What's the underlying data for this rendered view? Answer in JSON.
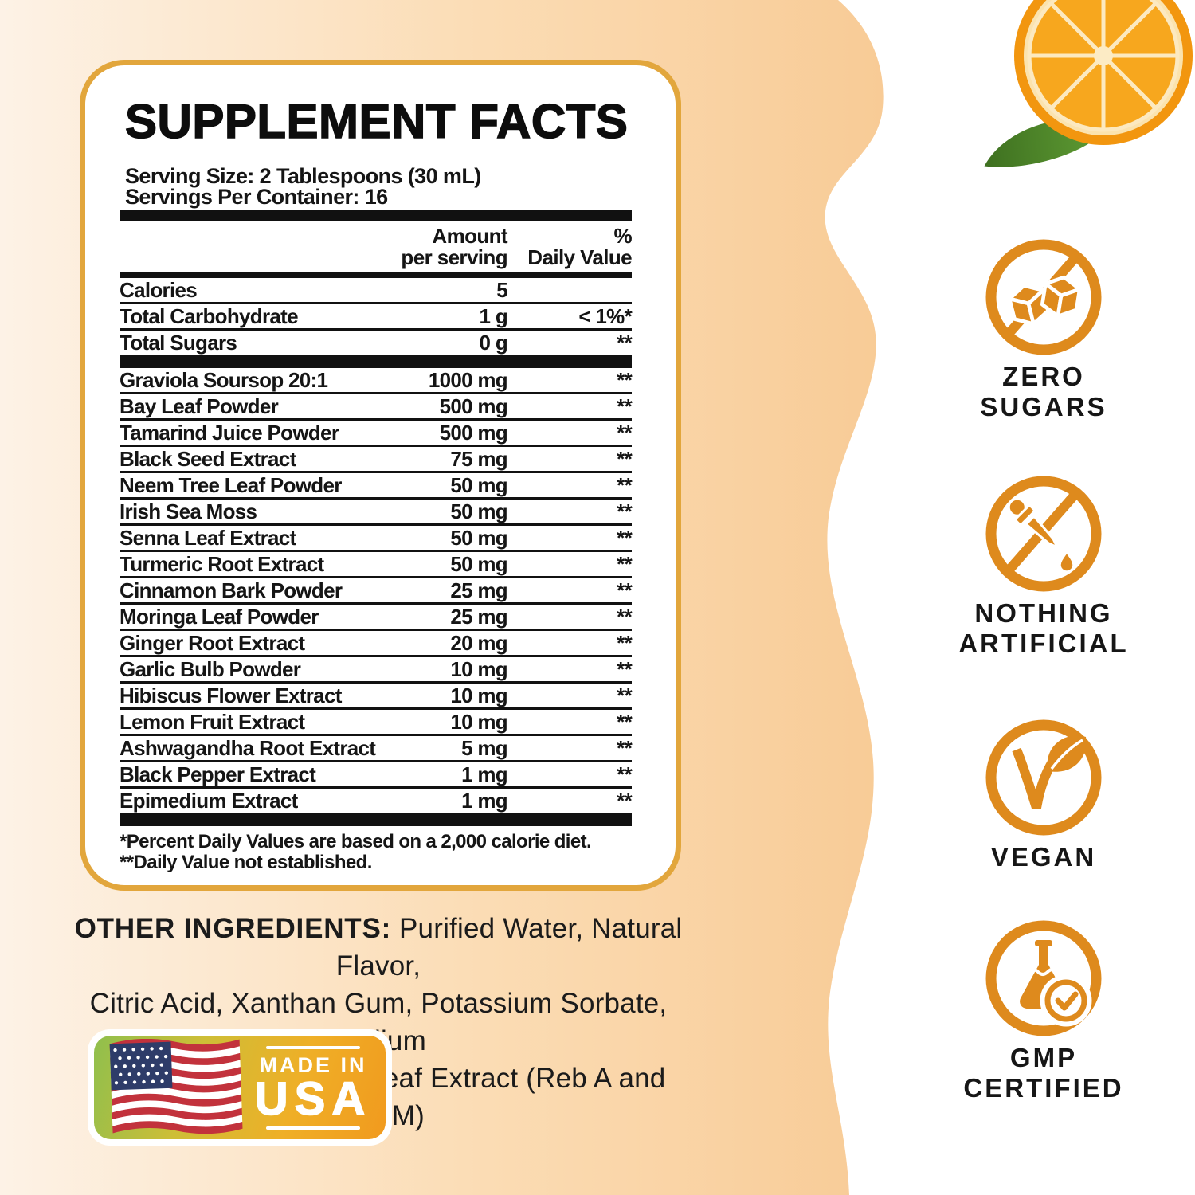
{
  "colors": {
    "accent_orange": "#DE8A1D",
    "panel_border_gold": "#E2A63C",
    "peach_light": "#FDF2E6",
    "peach_deep": "#F8CB96",
    "flag_red": "#C2323C",
    "flag_blue": "#2E3C69",
    "usa_green": "#8FBF4D",
    "usa_orange": "#F19A1E",
    "text_black": "#151515"
  },
  "panel": {
    "title": "SUPPLEMENT FACTS",
    "serving_size": "Serving Size: 2 Tablespoons (30 mL)",
    "servings_per_container": "Servings Per Container: 16",
    "columns": {
      "amount_line1": "Amount",
      "amount_line2": "per serving",
      "dv_line1": "%",
      "dv_line2": "Daily Value"
    },
    "macro_rows": [
      {
        "name": "Calories",
        "amount": "5",
        "dv": ""
      },
      {
        "name": "Total Carbohydrate",
        "amount": "1 g",
        "dv": "< 1%*"
      },
      {
        "name": "Total Sugars",
        "amount": "0 g",
        "dv": "**"
      }
    ],
    "ingredient_rows": [
      {
        "name": "Graviola Soursop 20:1",
        "amount": "1000 mg",
        "dv": "**"
      },
      {
        "name": "Bay Leaf Powder",
        "amount": "500 mg",
        "dv": "**"
      },
      {
        "name": "Tamarind Juice Powder",
        "amount": "500 mg",
        "dv": "**"
      },
      {
        "name": "Black Seed Extract",
        "amount": "75 mg",
        "dv": "**"
      },
      {
        "name": "Neem Tree Leaf Powder",
        "amount": "50 mg",
        "dv": "**"
      },
      {
        "name": "Irish Sea Moss",
        "amount": "50 mg",
        "dv": "**"
      },
      {
        "name": "Senna Leaf Extract",
        "amount": "50 mg",
        "dv": "**"
      },
      {
        "name": "Turmeric Root Extract",
        "amount": "50 mg",
        "dv": "**"
      },
      {
        "name": "Cinnamon Bark Powder",
        "amount": "25 mg",
        "dv": "**"
      },
      {
        "name": "Moringa Leaf Powder",
        "amount": "25 mg",
        "dv": "**"
      },
      {
        "name": "Ginger Root Extract",
        "amount": "20 mg",
        "dv": "**"
      },
      {
        "name": "Garlic Bulb Powder",
        "amount": "10 mg",
        "dv": "**"
      },
      {
        "name": "Hibiscus Flower Extract",
        "amount": "10 mg",
        "dv": "**"
      },
      {
        "name": "Lemon Fruit Extract",
        "amount": "10 mg",
        "dv": "**"
      },
      {
        "name": "Ashwagandha Root Extract",
        "amount": "5 mg",
        "dv": "**"
      },
      {
        "name": "Black Pepper Extract",
        "amount": "1 mg",
        "dv": "**"
      },
      {
        "name": "Epimedium Extract",
        "amount": "1 mg",
        "dv": "**"
      }
    ],
    "footnote1": "*Percent Daily Values are based on a 2,000 calorie diet.",
    "footnote2": "**Daily Value not established."
  },
  "other_ingredients": {
    "label": "OTHER INGREDIENTS:",
    "line1_rest": " Purified Water, Natural Flavor,",
    "line2": "Citric Acid, Xanthan Gum, Potassium Sorbate, Sodium",
    "line3": "Benzoate, and Stevia Leaf Extract (Reb A and Reb M)"
  },
  "made_in_usa": {
    "line1": "MADE IN",
    "line2": "USA"
  },
  "badges": [
    {
      "icon": "no-sugar-cubes-icon",
      "lines": [
        "ZERO",
        "SUGARS"
      ]
    },
    {
      "icon": "no-dropper-icon",
      "lines": [
        "NOTHING",
        "ARTIFICIAL"
      ]
    },
    {
      "icon": "vegan-leaf-check-icon",
      "lines": [
        "VEGAN"
      ]
    },
    {
      "icon": "gmp-flask-check-icon",
      "lines": [
        "GMP",
        "CERTIFIED"
      ]
    }
  ]
}
